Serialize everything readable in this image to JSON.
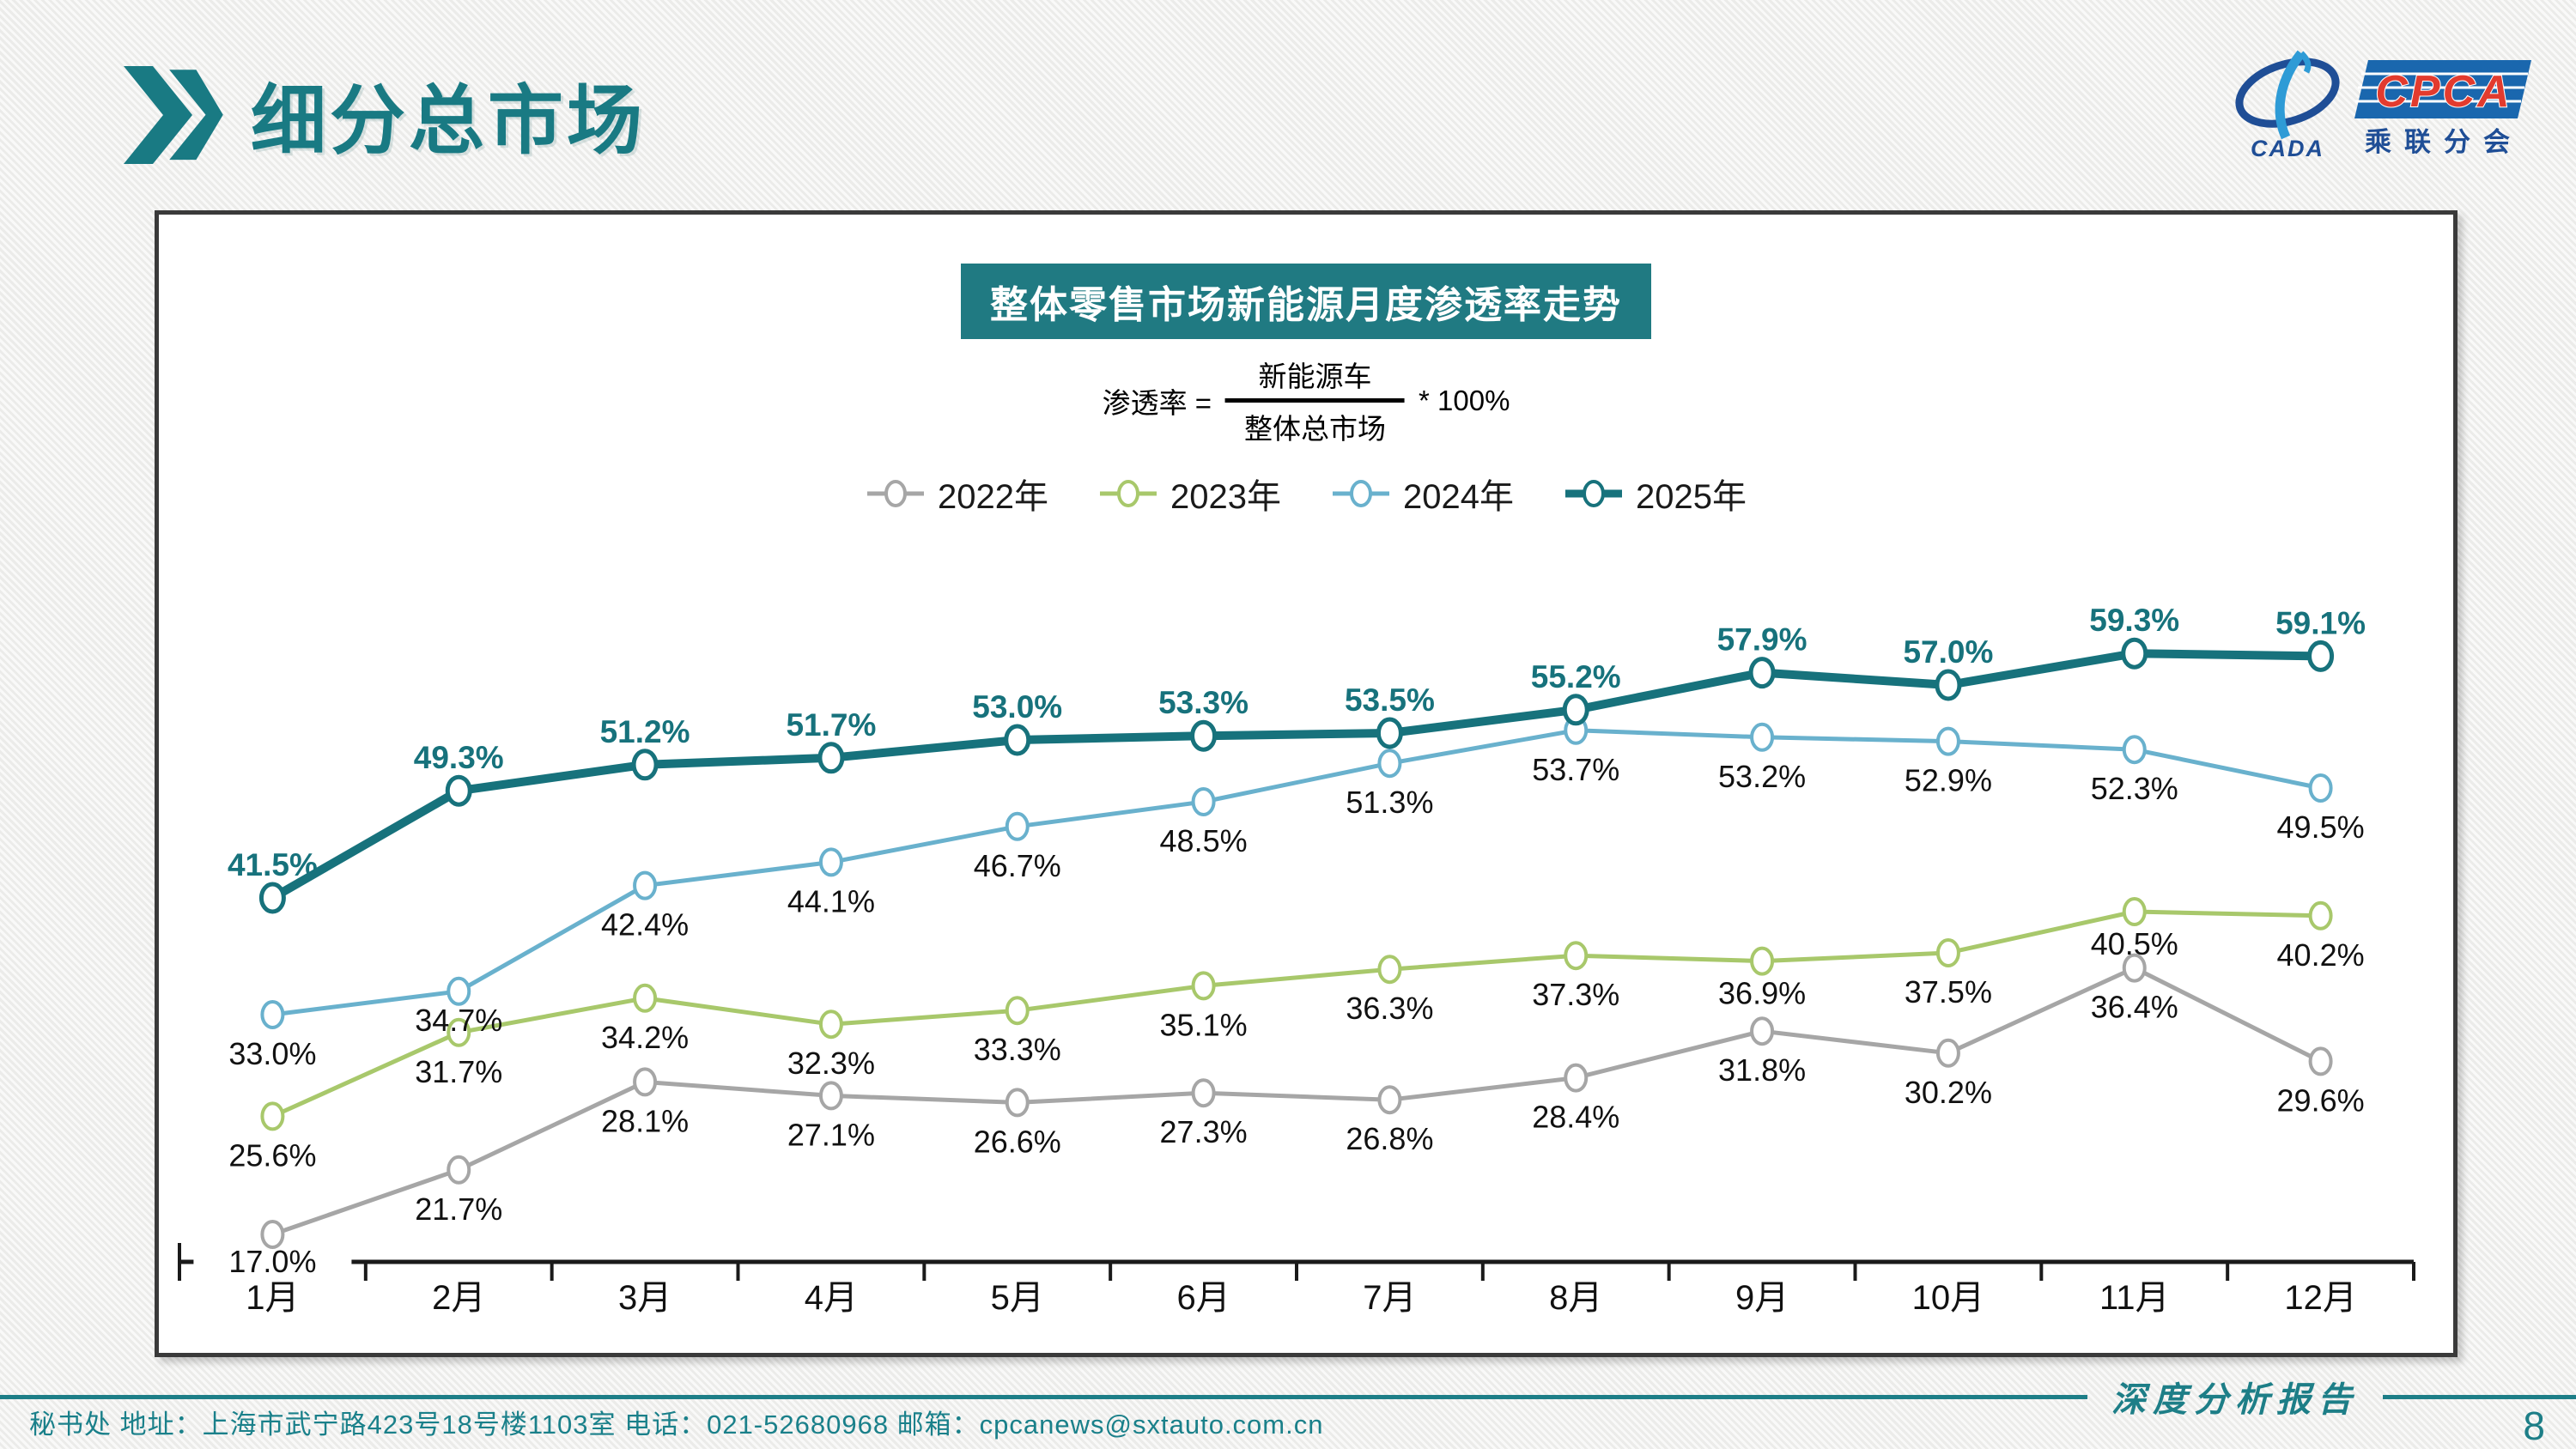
{
  "header": {
    "title": "细分总市场"
  },
  "logo": {
    "cpca": "CPCA",
    "cada": "CADA",
    "branch": "乘联分会"
  },
  "chart": {
    "title": "整体零售市场新能源月度渗透率走势",
    "formula": {
      "lhs": "渗透率 =",
      "numerator": "新能源车",
      "denominator": "整体总市场",
      "rhs": "* 100%"
    }
  },
  "chart_data": {
    "type": "line",
    "title": "整体零售市场新能源月度渗透率走势",
    "categories": [
      "1月",
      "2月",
      "3月",
      "4月",
      "5月",
      "6月",
      "7月",
      "8月",
      "9月",
      "10月",
      "11月",
      "12月"
    ],
    "series": [
      {
        "name": "2022年",
        "color": "#a6a6a6",
        "label_side": "below",
        "label_color": "#111111",
        "emphasis": false,
        "values": [
          17.0,
          21.7,
          28.1,
          27.1,
          26.6,
          27.3,
          26.8,
          28.4,
          31.8,
          30.2,
          36.4,
          29.6
        ]
      },
      {
        "name": "2023年",
        "color": "#a8c86b",
        "label_side": "below",
        "label_color": "#111111",
        "emphasis": false,
        "values": [
          25.6,
          31.7,
          34.2,
          32.3,
          33.3,
          35.1,
          36.3,
          37.3,
          36.9,
          37.5,
          40.5,
          40.2
        ]
      },
      {
        "name": "2024年",
        "color": "#69b1cd",
        "label_side": "below",
        "label_color": "#111111",
        "emphasis": false,
        "values": [
          33.0,
          34.7,
          42.4,
          44.1,
          46.7,
          48.5,
          51.3,
          53.7,
          53.2,
          52.9,
          52.3,
          49.5
        ]
      },
      {
        "name": "2025年",
        "color": "#17727c",
        "label_side": "above",
        "label_color": "#17727c",
        "emphasis": true,
        "values": [
          41.5,
          49.3,
          51.2,
          51.7,
          53.0,
          53.3,
          53.5,
          55.2,
          57.9,
          57.0,
          59.3,
          59.1
        ]
      }
    ],
    "ylim": [
      15,
      63
    ],
    "xlabel": "",
    "ylabel": "",
    "grid": false,
    "legend_position": "top",
    "label_format": "percent"
  },
  "footer": {
    "left": "秘书处   地址：上海市武宁路423号18号楼1103室  电话：021-52680968   邮箱：cpcanews@sxtauto.com.cn",
    "report_label": "深度分析报告",
    "page_number": "8"
  }
}
